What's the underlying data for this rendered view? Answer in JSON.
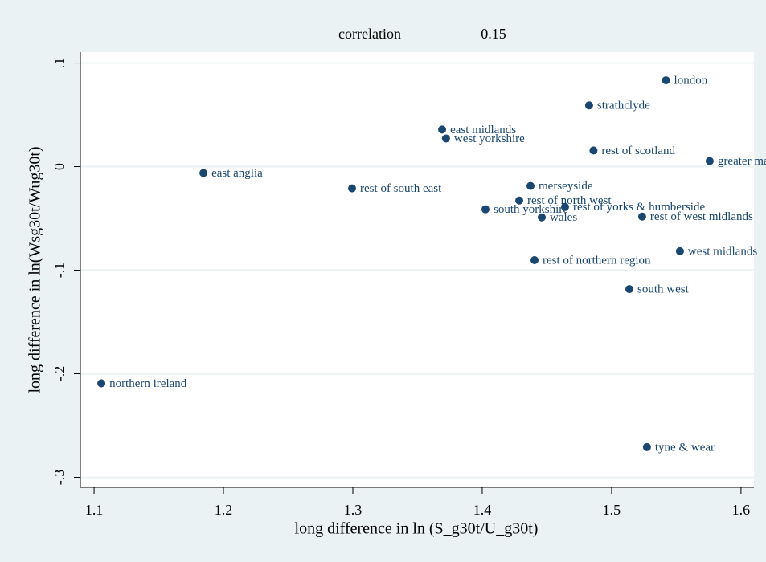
{
  "chart_data": {
    "type": "scatter",
    "title": "correlation",
    "title_value": 0.15,
    "x_label": "long difference in ln (S_g30t/U_g30t)",
    "y_label": "long difference in ln(Wsg30t/Wug30t)",
    "xlim": [
      1.0894,
      1.61
    ],
    "ylim": [
      -0.3097,
      0.1105
    ],
    "xticks": [
      1.1,
      1.2,
      1.3,
      1.4,
      1.5,
      1.6
    ],
    "yticks": [
      {
        "value": -0.3,
        "label": "-.3"
      },
      {
        "value": -0.2,
        "label": "-.2"
      },
      {
        "value": -0.1,
        "label": "-.1"
      },
      0,
      {
        "value": 0.1,
        "label": ".1"
      }
    ],
    "grid": true,
    "series": [
      {
        "color": "#1a476f",
        "labels": [
          "london",
          "strathclyde",
          "east midlands",
          "west yorkshire",
          "rest of scotland",
          "greater manchester",
          "east anglia",
          "rest of south east",
          "merseyside",
          "rest of north west",
          "rest of yorks & humberside",
          "south yorkshire",
          "wales",
          "rest of west midlands",
          "west midlands",
          "rest of northern region",
          "south west",
          "northern ireland",
          "tyne & wear"
        ],
        "x": [
          1.542,
          1.4826,
          1.369,
          1.372,
          1.486,
          1.5758,
          1.1845,
          1.2994,
          1.4373,
          1.4286,
          1.464,
          1.4025,
          1.446,
          1.5236,
          1.5528,
          1.4404,
          1.5137,
          1.1056,
          1.5273
        ],
        "values": [
          0.0833,
          0.0591,
          0.0358,
          0.0272,
          0.0156,
          0.0054,
          -0.0062,
          -0.021,
          -0.0187,
          -0.0327,
          -0.0389,
          -0.0412,
          -0.049,
          -0.0482,
          -0.0817,
          -0.0903,
          -0.1183,
          -0.2093,
          -0.2708
        ]
      }
    ]
  }
}
